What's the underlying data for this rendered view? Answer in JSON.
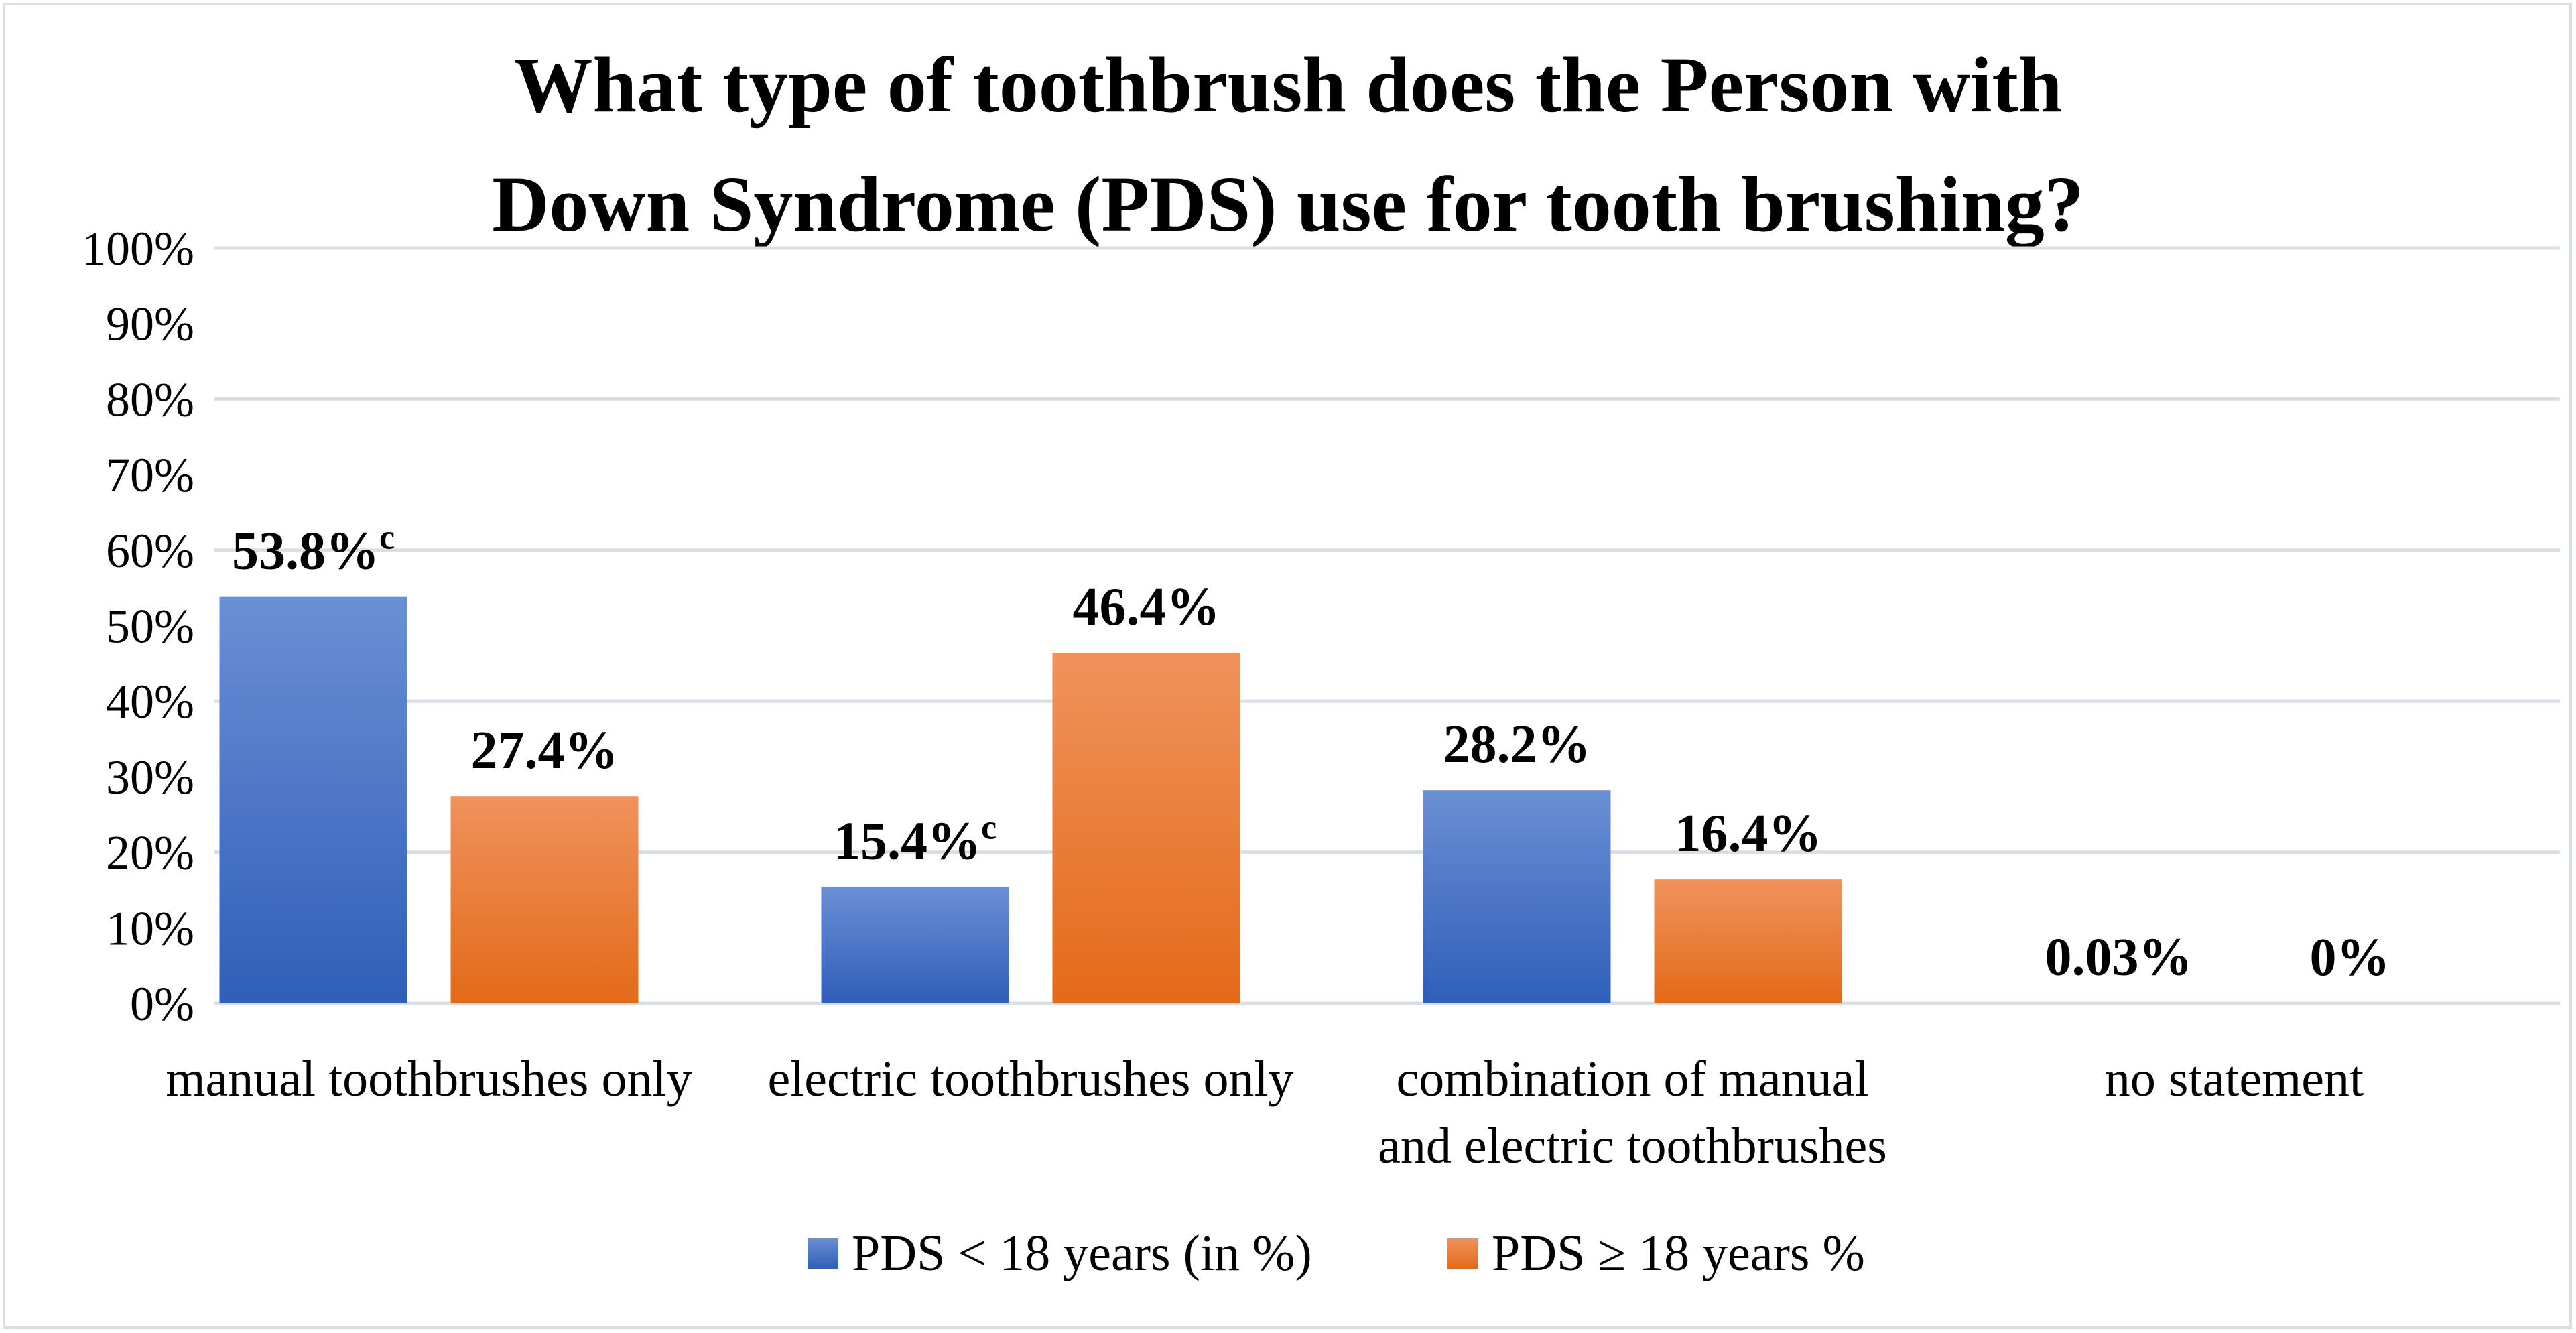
{
  "chart_data": {
    "type": "bar",
    "title": "What type of toothbrush does the Person with Down Syndrome (PDS) use for tooth brushing?",
    "title_lines": [
      "What type of toothbrush does the Person with",
      "Down Syndrome (PDS) use for tooth brushing?"
    ],
    "categories": [
      [
        "manual toothbrushes only"
      ],
      [
        "electric toothbrushes only"
      ],
      [
        "combination of manual",
        "and electric toothbrushes"
      ],
      [
        "no statement"
      ]
    ],
    "series": [
      {
        "name": "PDS < 18 years (in %)",
        "color": "#4472c4",
        "values": [
          53.8,
          15.4,
          28.2,
          0.03
        ],
        "labels": [
          "53.8%",
          "15.4%",
          "28.2%",
          "0.03%"
        ],
        "superscripts": [
          "c",
          "c",
          "",
          ""
        ]
      },
      {
        "name": "PDS ≥ 18 years %",
        "color": "#ed7d31",
        "values": [
          27.4,
          46.4,
          16.4,
          0
        ],
        "labels": [
          "27.4%",
          "46.4%",
          "16.4%",
          "0%"
        ],
        "superscripts": [
          "",
          "",
          "",
          ""
        ]
      }
    ],
    "yticks": [
      "0%",
      "10%",
      "20%",
      "30%",
      "40%",
      "50%",
      "60%",
      "70%",
      "80%",
      "90%",
      "100%"
    ],
    "ylim": [
      0,
      100
    ],
    "xlabel": "",
    "ylabel": "",
    "grid": true,
    "legend_position": "bottom"
  }
}
